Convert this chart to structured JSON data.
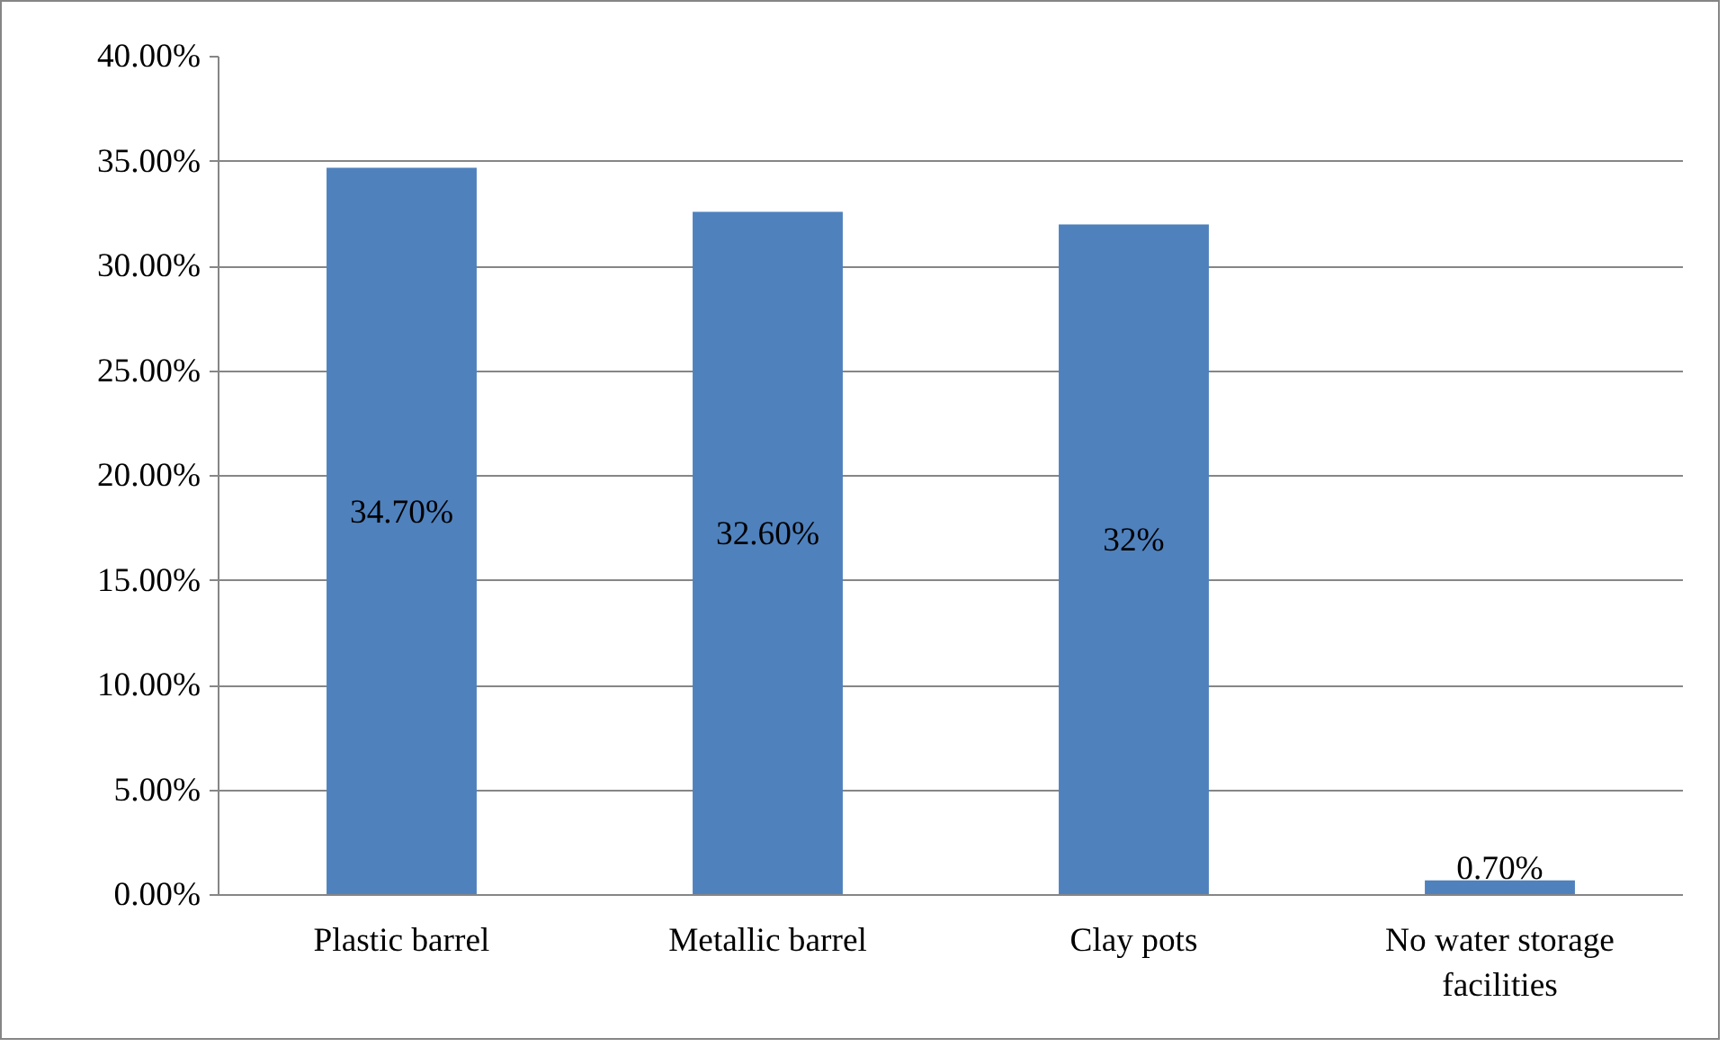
{
  "chart_data": {
    "type": "bar",
    "categories": [
      "Plastic barrel",
      "Metallic barrel",
      "Clay pots",
      "No water storage facilities"
    ],
    "values": [
      34.7,
      32.6,
      32,
      0.7
    ],
    "value_labels": [
      "34.70%",
      "32.60%",
      "32%",
      "0.70%"
    ],
    "color": "#4f81bd",
    "ylim": [
      0,
      40
    ],
    "yticks": [
      {
        "value": 0,
        "label": "0.00%"
      },
      {
        "value": 5,
        "label": "5.00%"
      },
      {
        "value": 10,
        "label": "10.00%"
      },
      {
        "value": 15,
        "label": "15.00%"
      },
      {
        "value": 20,
        "label": "20.00%"
      },
      {
        "value": 25,
        "label": "25.00%"
      },
      {
        "value": 30,
        "label": "30.00%"
      },
      {
        "value": 35,
        "label": "35.00%"
      },
      {
        "value": 40,
        "label": "40.00%"
      }
    ],
    "grid": "y"
  }
}
